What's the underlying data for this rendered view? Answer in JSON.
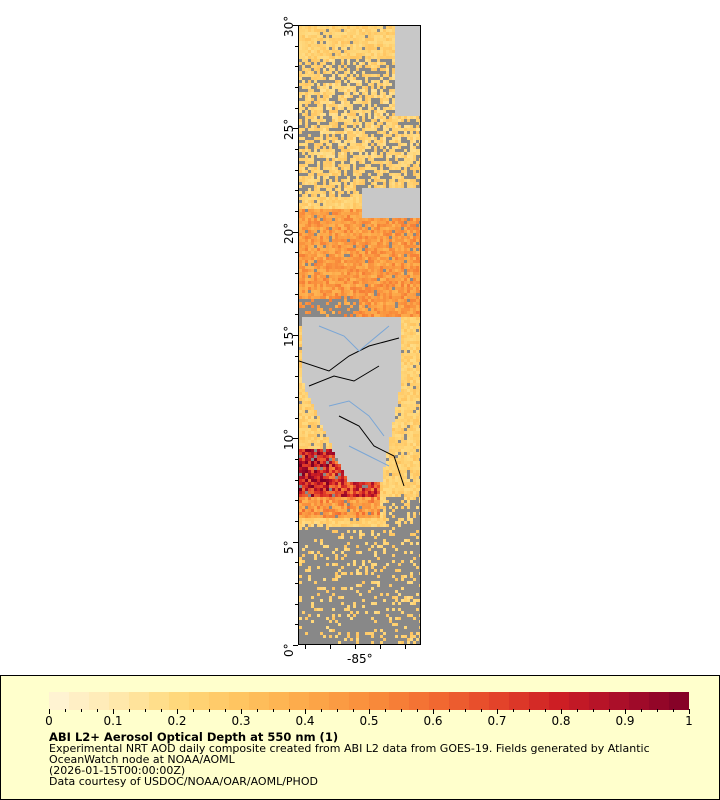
{
  "map": {
    "lat_labels": [
      {
        "lat": 30,
        "text": "30°"
      },
      {
        "lat": 25,
        "text": "25°"
      },
      {
        "lat": 20,
        "text": "20°"
      },
      {
        "lat": 15,
        "text": "15°"
      },
      {
        "lat": 10,
        "text": "10°"
      },
      {
        "lat": 5,
        "text": "5°"
      },
      {
        "lat": 0,
        "text": "0°"
      }
    ],
    "lon_label": "-85°",
    "colors": {
      "land": "#c8c8c8",
      "nodata_ocean": "#888888",
      "border": "#000000",
      "river": "#7aa6d6"
    }
  },
  "legend": {
    "title": "ABI L2+ Aerosol Optical Depth at 550 nm (1)",
    "description": "Experimental NRT AOD daily composite created from ABI L2 data from GOES-19. Fields generated by Atlantic OceanWatch node at NOAA/AOML",
    "time": "(2026-01-15T00:00:00Z)",
    "credit": "Data courtesy of USDOC/NOAA/OAR/AOML/PHOD",
    "colorbar_labels": [
      "0",
      "0.1",
      "0.2",
      "0.3",
      "0.4",
      "0.5",
      "0.6",
      "0.7",
      "0.8",
      "0.9",
      "1"
    ],
    "range": [
      0,
      1
    ],
    "colormap": [
      "#fff5d8",
      "#ffe9b0",
      "#ffd97d",
      "#ffc460",
      "#fdaa4a",
      "#f98e3c",
      "#f26c32",
      "#e4442a",
      "#cc1d24",
      "#a80d2a",
      "#800026"
    ]
  }
}
